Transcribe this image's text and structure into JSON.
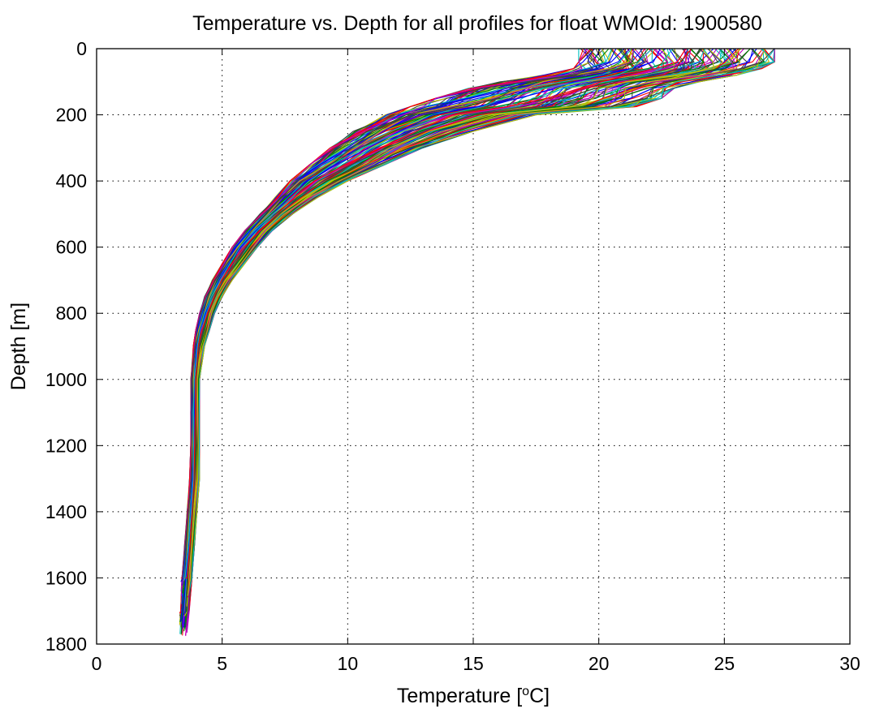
{
  "chart_data": {
    "type": "line",
    "title": "Temperature vs. Depth for all profiles for float WMOId: 1900580",
    "xlabel_main": "Temperature [",
    "xlabel_sup": "o",
    "xlabel_tail": "C]",
    "ylabel": "Depth [m]",
    "xlim": [
      0,
      30
    ],
    "ylim": [
      0,
      1800
    ],
    "y_reversed": true,
    "grid": true,
    "grid_style": "dotted",
    "xticks": [
      0,
      5,
      10,
      15,
      20,
      25,
      30
    ],
    "yticks": [
      0,
      200,
      400,
      600,
      800,
      1000,
      1200,
      1400,
      1600,
      1800
    ],
    "xtick_labels": [
      "0",
      "5",
      "10",
      "15",
      "20",
      "25",
      "30"
    ],
    "ytick_labels": [
      "0",
      "200",
      "400",
      "600",
      "800",
      "1000",
      "1200",
      "1400",
      "1600",
      "1800"
    ],
    "legend": "none",
    "series_colors": [
      "#0000ff",
      "#008000",
      "#ff0000",
      "#00bfbf",
      "#bf00bf",
      "#bfbf00",
      "#404040"
    ],
    "profile_count_approx": 140,
    "envelope": {
      "depth": [
        0,
        40,
        60,
        80,
        100,
        120,
        150,
        175,
        200,
        250,
        300,
        350,
        400,
        450,
        500,
        550,
        600,
        650,
        700,
        750,
        800,
        850,
        900,
        950,
        1000,
        1100,
        1200,
        1300,
        1400,
        1500,
        1600,
        1700,
        1780
      ],
      "warm_edge": [
        27.0,
        27.0,
        26.5,
        25.5,
        24.0,
        23.0,
        22.5,
        21.5,
        17.5,
        15.0,
        13.0,
        11.5,
        10.0,
        8.8,
        7.8,
        7.0,
        6.4,
        5.9,
        5.4,
        5.0,
        4.7,
        4.5,
        4.3,
        4.2,
        4.1,
        4.1,
        4.1,
        4.1,
        4.0,
        3.9,
        3.8,
        3.7,
        3.6
      ],
      "cool_edge": [
        19.2,
        19.2,
        19.0,
        17.8,
        16.0,
        14.8,
        13.5,
        12.5,
        11.5,
        10.2,
        9.3,
        8.5,
        7.7,
        7.1,
        6.5,
        5.9,
        5.4,
        5.0,
        4.6,
        4.3,
        4.1,
        3.95,
        3.85,
        3.8,
        3.75,
        3.75,
        3.75,
        3.7,
        3.6,
        3.5,
        3.4,
        3.35,
        3.3
      ]
    }
  }
}
